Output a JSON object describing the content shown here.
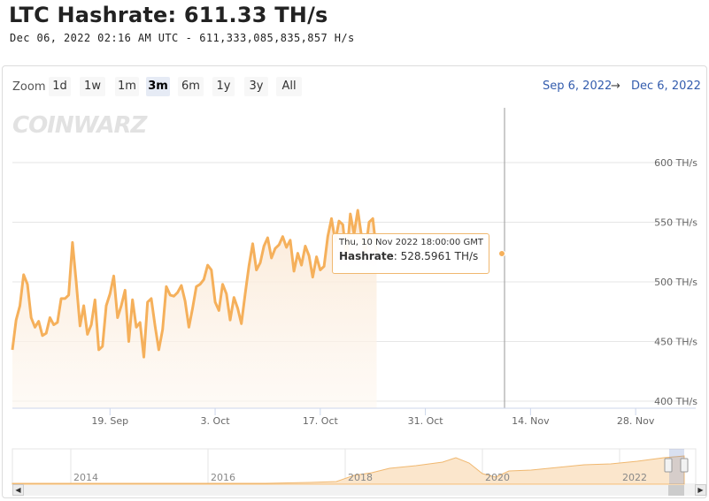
{
  "header": {
    "title": "LTC Hashrate: 611.33 TH/s",
    "date": "Dec 06, 2022 02:16 AM UTC",
    "separator": "-",
    "raw_hashrate": "611,333,085,835,857 H/s"
  },
  "toolbar": {
    "zoom_label": "Zoom",
    "buttons": [
      "1d",
      "1w",
      "1m",
      "3m",
      "6m",
      "1y",
      "3y",
      "All"
    ],
    "active": "3m",
    "range_from": "Sep 6, 2022",
    "range_separator": "→",
    "range_to": "Dec 6, 2022"
  },
  "watermark": "COINWARZ",
  "tooltip": {
    "date": "Thu, 10 Nov 2022 18:00:00 GMT",
    "series": "Hashrate",
    "value": "528.5961 TH/s"
  },
  "colors": {
    "line": "#f5b05b",
    "fill_top": "#fbeee0",
    "accent": "#335cad"
  },
  "chart_data": {
    "type": "area",
    "series": [
      {
        "name": "Hashrate"
      }
    ],
    "yunit": "TH/s",
    "ylim": [
      400,
      620
    ],
    "yticks": [
      400,
      450,
      500,
      550,
      600
    ],
    "ytick_labels": [
      "400 TH/s",
      "450 TH/s",
      "500 TH/s",
      "550 TH/s",
      "600 TH/s"
    ],
    "x_range": [
      "2022-09-06",
      "2022-12-06"
    ],
    "xticks": [
      {
        "date": "2022-09-19",
        "label": "19. Sep"
      },
      {
        "date": "2022-10-03",
        "label": "3. Oct"
      },
      {
        "date": "2022-10-17",
        "label": "17. Oct"
      },
      {
        "date": "2022-10-31",
        "label": "31. Oct"
      },
      {
        "date": "2022-11-14",
        "label": "14. Nov"
      },
      {
        "date": "2022-11-28",
        "label": "28. Nov"
      }
    ],
    "grid": true,
    "points": [
      [
        "2022-09-06 00:00",
        443
      ],
      [
        "2022-09-06 12:00",
        468
      ],
      [
        "2022-09-07 00:00",
        480
      ],
      [
        "2022-09-07 12:00",
        506
      ],
      [
        "2022-09-08 00:00",
        498
      ],
      [
        "2022-09-08 12:00",
        470
      ],
      [
        "2022-09-09 00:00",
        462
      ],
      [
        "2022-09-09 12:00",
        467
      ],
      [
        "2022-09-10 00:00",
        455
      ],
      [
        "2022-09-10 12:00",
        457
      ],
      [
        "2022-09-11 00:00",
        470
      ],
      [
        "2022-09-11 12:00",
        464
      ],
      [
        "2022-09-12 00:00",
        466
      ],
      [
        "2022-09-12 12:00",
        486
      ],
      [
        "2022-09-13 00:00",
        486
      ],
      [
        "2022-09-13 12:00",
        489
      ],
      [
        "2022-09-14 00:00",
        533
      ],
      [
        "2022-09-14 12:00",
        500
      ],
      [
        "2022-09-15 00:00",
        463
      ],
      [
        "2022-09-15 12:00",
        480
      ],
      [
        "2022-09-16 00:00",
        456
      ],
      [
        "2022-09-16 12:00",
        464
      ],
      [
        "2022-09-17 00:00",
        485
      ],
      [
        "2022-09-17 12:00",
        443
      ],
      [
        "2022-09-18 00:00",
        446
      ],
      [
        "2022-09-18 12:00",
        480
      ],
      [
        "2022-09-19 00:00",
        490
      ],
      [
        "2022-09-19 12:00",
        505
      ],
      [
        "2022-09-20 00:00",
        470
      ],
      [
        "2022-09-20 12:00",
        480
      ],
      [
        "2022-09-21 00:00",
        493
      ],
      [
        "2022-09-21 12:00",
        450
      ],
      [
        "2022-09-22 00:00",
        485
      ],
      [
        "2022-09-22 12:00",
        462
      ],
      [
        "2022-09-23 00:00",
        466
      ],
      [
        "2022-09-23 12:00",
        437
      ],
      [
        "2022-09-24 00:00",
        483
      ],
      [
        "2022-09-24 12:00",
        486
      ],
      [
        "2022-09-25 00:00",
        463
      ],
      [
        "2022-09-25 12:00",
        443
      ],
      [
        "2022-09-26 00:00",
        460
      ],
      [
        "2022-09-26 12:00",
        496
      ],
      [
        "2022-09-27 00:00",
        489
      ],
      [
        "2022-09-27 12:00",
        488
      ],
      [
        "2022-09-28 00:00",
        491
      ],
      [
        "2022-09-28 12:00",
        497
      ],
      [
        "2022-09-29 00:00",
        484
      ],
      [
        "2022-09-29 12:00",
        462
      ],
      [
        "2022-09-30 00:00",
        478
      ],
      [
        "2022-09-30 12:00",
        496
      ],
      [
        "2022-10-01 00:00",
        498
      ],
      [
        "2022-10-01 12:00",
        502
      ],
      [
        "2022-10-02 00:00",
        514
      ],
      [
        "2022-10-02 12:00",
        510
      ],
      [
        "2022-10-03 00:00",
        483
      ],
      [
        "2022-10-03 12:00",
        476
      ],
      [
        "2022-10-04 00:00",
        498
      ],
      [
        "2022-10-04 12:00",
        490
      ],
      [
        "2022-10-05 00:00",
        468
      ],
      [
        "2022-10-05 12:00",
        487
      ],
      [
        "2022-10-06 00:00",
        478
      ],
      [
        "2022-10-06 12:00",
        465
      ],
      [
        "2022-10-07 00:00",
        490
      ],
      [
        "2022-10-07 12:00",
        513
      ],
      [
        "2022-10-08 00:00",
        532
      ],
      [
        "2022-10-08 12:00",
        510
      ],
      [
        "2022-10-09 00:00",
        516
      ],
      [
        "2022-10-09 12:00",
        530
      ],
      [
        "2022-10-10 00:00",
        537
      ],
      [
        "2022-10-10 12:00",
        520
      ],
      [
        "2022-10-11 00:00",
        528
      ],
      [
        "2022-10-11 12:00",
        531
      ],
      [
        "2022-10-12 00:00",
        538
      ],
      [
        "2022-10-12 12:00",
        529
      ],
      [
        "2022-10-13 00:00",
        535
      ],
      [
        "2022-10-13 12:00",
        509
      ],
      [
        "2022-10-14 00:00",
        524
      ],
      [
        "2022-10-14 12:00",
        514
      ],
      [
        "2022-10-15 00:00",
        530
      ],
      [
        "2022-10-15 12:00",
        522
      ],
      [
        "2022-10-16 00:00",
        504
      ],
      [
        "2022-10-16 12:00",
        521
      ],
      [
        "2022-10-17 00:00",
        510
      ],
      [
        "2022-10-17 12:00",
        513
      ],
      [
        "2022-10-18 00:00",
        538
      ],
      [
        "2022-10-18 12:00",
        553
      ],
      [
        "2022-10-19 00:00",
        534
      ],
      [
        "2022-10-19 12:00",
        551
      ],
      [
        "2022-10-20 00:00",
        548
      ],
      [
        "2022-10-20 12:00",
        520
      ]
    ]
  }
}
